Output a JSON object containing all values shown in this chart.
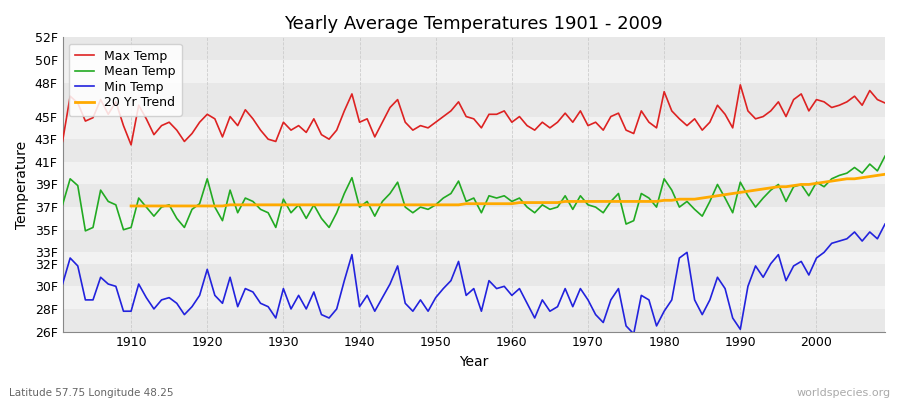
{
  "title": "Yearly Average Temperatures 1901 - 2009",
  "xlabel": "Year",
  "ylabel": "Temperature",
  "subtitle": "Latitude 57.75 Longitude 48.25",
  "watermark": "worldspecies.org",
  "years": [
    1901,
    1902,
    1903,
    1904,
    1905,
    1906,
    1907,
    1908,
    1909,
    1910,
    1911,
    1912,
    1913,
    1914,
    1915,
    1916,
    1917,
    1918,
    1919,
    1920,
    1921,
    1922,
    1923,
    1924,
    1925,
    1926,
    1927,
    1928,
    1929,
    1930,
    1931,
    1932,
    1933,
    1934,
    1935,
    1936,
    1937,
    1938,
    1939,
    1940,
    1941,
    1942,
    1943,
    1944,
    1945,
    1946,
    1947,
    1948,
    1949,
    1950,
    1951,
    1952,
    1953,
    1954,
    1955,
    1956,
    1957,
    1958,
    1959,
    1960,
    1961,
    1962,
    1963,
    1964,
    1965,
    1966,
    1967,
    1968,
    1969,
    1970,
    1971,
    1972,
    1973,
    1974,
    1975,
    1976,
    1977,
    1978,
    1979,
    1980,
    1981,
    1982,
    1983,
    1984,
    1985,
    1986,
    1987,
    1988,
    1989,
    1990,
    1991,
    1992,
    1993,
    1994,
    1995,
    1996,
    1997,
    1998,
    1999,
    2000,
    2001,
    2002,
    2003,
    2004,
    2005,
    2006,
    2007,
    2008,
    2009
  ],
  "max_temp": [
    42.8,
    46.8,
    46.2,
    44.6,
    44.9,
    46.5,
    45.2,
    46.3,
    44.2,
    42.5,
    46.0,
    44.8,
    43.4,
    44.2,
    44.5,
    43.8,
    42.8,
    43.5,
    44.5,
    45.2,
    44.8,
    43.2,
    45.0,
    44.2,
    45.6,
    44.8,
    43.8,
    43.0,
    42.8,
    44.5,
    43.8,
    44.2,
    43.6,
    44.8,
    43.4,
    43.0,
    43.8,
    45.5,
    47.0,
    44.5,
    44.8,
    43.2,
    44.5,
    45.8,
    46.5,
    44.5,
    43.8,
    44.2,
    44.0,
    44.5,
    45.0,
    45.5,
    46.3,
    45.0,
    44.8,
    44.0,
    45.2,
    45.2,
    45.5,
    44.5,
    45.0,
    44.2,
    43.8,
    44.5,
    44.0,
    44.5,
    45.3,
    44.5,
    45.5,
    44.2,
    44.5,
    43.8,
    45.0,
    45.3,
    43.8,
    43.5,
    45.5,
    44.5,
    44.0,
    47.2,
    45.5,
    44.8,
    44.2,
    44.8,
    43.8,
    44.5,
    46.0,
    45.2,
    44.0,
    47.8,
    45.5,
    44.8,
    45.0,
    45.5,
    46.3,
    45.0,
    46.5,
    47.0,
    45.5,
    46.5,
    46.3,
    45.8,
    46.0,
    46.3,
    46.8,
    46.0,
    47.3,
    46.5,
    46.2
  ],
  "mean_temp": [
    37.2,
    39.5,
    38.9,
    34.9,
    35.2,
    38.5,
    37.5,
    37.2,
    35.0,
    35.2,
    37.8,
    37.0,
    36.2,
    37.0,
    37.2,
    36.0,
    35.2,
    36.8,
    37.3,
    39.5,
    37.0,
    35.8,
    38.5,
    36.5,
    37.8,
    37.5,
    36.8,
    36.5,
    35.2,
    37.7,
    36.5,
    37.2,
    36.0,
    37.2,
    36.0,
    35.2,
    36.5,
    38.2,
    39.6,
    37.0,
    37.5,
    36.2,
    37.5,
    38.2,
    39.2,
    37.0,
    36.5,
    37.0,
    36.8,
    37.2,
    37.8,
    38.2,
    39.3,
    37.5,
    37.8,
    36.5,
    38.0,
    37.8,
    38.0,
    37.5,
    37.8,
    37.0,
    36.5,
    37.2,
    36.8,
    37.0,
    38.0,
    36.8,
    38.0,
    37.2,
    37.0,
    36.5,
    37.5,
    38.2,
    35.5,
    35.8,
    38.2,
    37.8,
    37.0,
    39.5,
    38.5,
    37.0,
    37.5,
    36.8,
    36.2,
    37.5,
    39.0,
    37.8,
    36.5,
    39.2,
    38.0,
    37.0,
    37.8,
    38.5,
    39.0,
    37.5,
    38.8,
    39.0,
    38.0,
    39.2,
    38.8,
    39.5,
    39.8,
    40.0,
    40.5,
    40.0,
    40.8,
    40.2,
    41.5
  ],
  "min_temp": [
    30.2,
    32.5,
    31.8,
    28.8,
    28.8,
    30.8,
    30.2,
    30.0,
    27.8,
    27.8,
    30.2,
    29.0,
    28.0,
    28.8,
    29.0,
    28.5,
    27.5,
    28.2,
    29.2,
    31.5,
    29.2,
    28.5,
    30.8,
    28.2,
    29.8,
    29.5,
    28.5,
    28.2,
    27.2,
    29.8,
    28.0,
    29.2,
    28.0,
    29.5,
    27.5,
    27.2,
    28.0,
    30.5,
    32.8,
    28.2,
    29.2,
    27.8,
    29.0,
    30.2,
    31.8,
    28.5,
    27.8,
    28.8,
    27.8,
    29.0,
    29.8,
    30.5,
    32.2,
    29.2,
    29.8,
    27.8,
    30.5,
    29.8,
    30.0,
    29.2,
    29.8,
    28.5,
    27.2,
    28.8,
    27.8,
    28.2,
    29.8,
    28.2,
    29.8,
    28.8,
    27.5,
    26.8,
    28.8,
    29.8,
    26.5,
    25.8,
    29.2,
    28.8,
    26.5,
    27.8,
    28.8,
    32.5,
    33.0,
    28.8,
    27.5,
    28.8,
    30.8,
    29.8,
    27.2,
    26.2,
    30.0,
    31.8,
    30.8,
    32.0,
    32.8,
    30.5,
    31.8,
    32.2,
    31.0,
    32.5,
    33.0,
    33.8,
    34.0,
    34.2,
    34.8,
    34.0,
    34.8,
    34.2,
    35.5
  ],
  "trend_years": [
    1910,
    1911,
    1912,
    1913,
    1914,
    1915,
    1916,
    1917,
    1918,
    1919,
    1920,
    1921,
    1922,
    1923,
    1924,
    1925,
    1926,
    1927,
    1928,
    1929,
    1930,
    1931,
    1932,
    1933,
    1934,
    1935,
    1936,
    1937,
    1938,
    1939,
    1940,
    1941,
    1942,
    1943,
    1944,
    1945,
    1946,
    1947,
    1948,
    1949,
    1950,
    1951,
    1952,
    1953,
    1954,
    1955,
    1956,
    1957,
    1958,
    1959,
    1960,
    1961,
    1962,
    1963,
    1964,
    1965,
    1966,
    1967,
    1968,
    1969,
    1970,
    1971,
    1972,
    1973,
    1974,
    1975,
    1976,
    1977,
    1978,
    1979,
    1980,
    1981,
    1982,
    1983,
    1984,
    1985,
    1986,
    1987,
    1988,
    1989,
    1990,
    1991,
    1992,
    1993,
    1994,
    1995,
    1996,
    1997,
    1998,
    1999,
    2000,
    2001,
    2002,
    2003,
    2004,
    2005,
    2006,
    2007,
    2008,
    2009
  ],
  "trend": [
    37.1,
    37.1,
    37.1,
    37.1,
    37.1,
    37.1,
    37.1,
    37.1,
    37.1,
    37.1,
    37.1,
    37.1,
    37.1,
    37.2,
    37.2,
    37.2,
    37.2,
    37.2,
    37.2,
    37.2,
    37.2,
    37.2,
    37.2,
    37.2,
    37.2,
    37.2,
    37.2,
    37.2,
    37.2,
    37.2,
    37.2,
    37.2,
    37.2,
    37.2,
    37.2,
    37.2,
    37.2,
    37.2,
    37.2,
    37.2,
    37.2,
    37.2,
    37.2,
    37.2,
    37.3,
    37.3,
    37.3,
    37.3,
    37.3,
    37.3,
    37.3,
    37.4,
    37.4,
    37.4,
    37.4,
    37.4,
    37.4,
    37.5,
    37.5,
    37.5,
    37.5,
    37.5,
    37.5,
    37.5,
    37.5,
    37.5,
    37.5,
    37.5,
    37.5,
    37.5,
    37.6,
    37.6,
    37.7,
    37.7,
    37.7,
    37.8,
    37.9,
    38.0,
    38.1,
    38.2,
    38.3,
    38.4,
    38.5,
    38.6,
    38.7,
    38.8,
    38.8,
    38.9,
    39.0,
    39.0,
    39.1,
    39.2,
    39.3,
    39.4,
    39.5,
    39.5,
    39.6,
    39.7,
    39.8,
    39.9
  ],
  "max_color": "#dd2222",
  "mean_color": "#22aa22",
  "min_color": "#2222dd",
  "trend_color": "#ffaa00",
  "ylim": [
    26,
    52
  ],
  "yticks": [
    26,
    28,
    30,
    32,
    33,
    35,
    37,
    39,
    41,
    43,
    45,
    48,
    50,
    52
  ],
  "ytick_labels": [
    "26F",
    "28F",
    "30F",
    "32F",
    "33F",
    "35F",
    "37F",
    "39F",
    "41F",
    "43F",
    "45F",
    "48F",
    "50F",
    "52F"
  ],
  "xticks": [
    1910,
    1920,
    1930,
    1940,
    1950,
    1960,
    1970,
    1980,
    1990,
    2000
  ],
  "title_fontsize": 13,
  "axis_fontsize": 10,
  "tick_fontsize": 9,
  "bg_bands": [
    [
      26,
      28,
      "#e8e8e8"
    ],
    [
      28,
      30,
      "#f2f2f2"
    ],
    [
      30,
      32,
      "#e8e8e8"
    ],
    [
      32,
      33,
      "#f2f2f2"
    ],
    [
      33,
      35,
      "#e8e8e8"
    ],
    [
      35,
      37,
      "#f2f2f2"
    ],
    [
      37,
      39,
      "#e8e8e8"
    ],
    [
      39,
      41,
      "#f2f2f2"
    ],
    [
      41,
      43,
      "#e8e8e8"
    ],
    [
      43,
      45,
      "#f2f2f2"
    ],
    [
      45,
      48,
      "#e8e8e8"
    ],
    [
      48,
      50,
      "#f2f2f2"
    ],
    [
      50,
      52,
      "#e8e8e8"
    ]
  ]
}
